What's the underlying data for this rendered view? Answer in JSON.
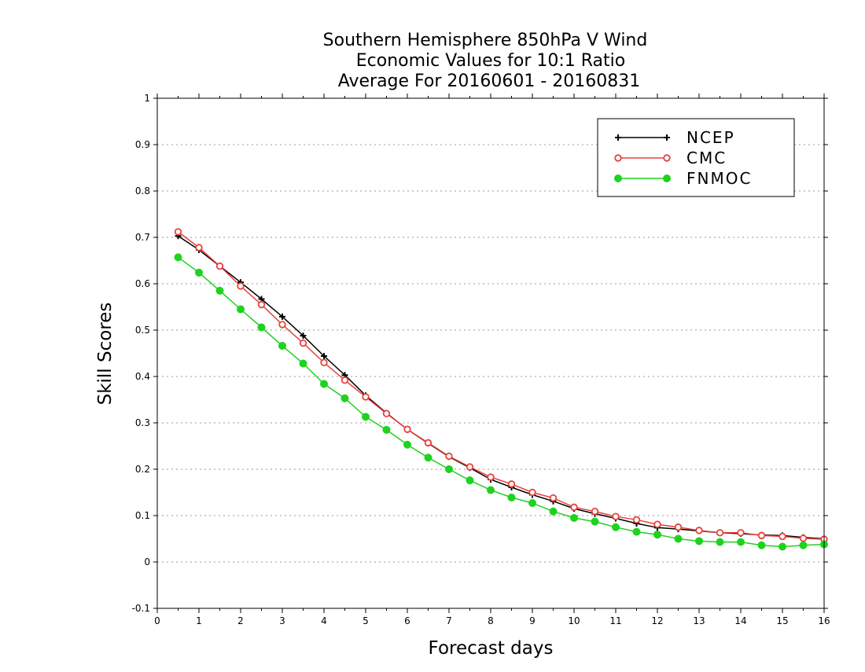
{
  "title_lines": [
    "Southern Hemisphere 850hPa V Wind",
    "Economic Values for 10:1 Ratio",
    "Average For 20160601 - 20160831"
  ],
  "colors": {
    "NCEP": "#000000",
    "CMC": "#e8413c",
    "FNMOC": "#1fd21f",
    "grid": "#9a9a9a"
  },
  "chart_data": {
    "type": "line",
    "xlabel": "Forecast days",
    "ylabel": "Skill Scores",
    "xlim": [
      0,
      16
    ],
    "ylim": [
      -0.1,
      1
    ],
    "xticks": [
      "0",
      "1",
      "2",
      "3",
      "4",
      "5",
      "6",
      "7",
      "8",
      "9",
      "10",
      "11",
      "12",
      "13",
      "14",
      "15",
      "16"
    ],
    "yticks": [
      "-0.1",
      "0",
      "0.1",
      "0.2",
      "0.3",
      "0.4",
      "0.5",
      "0.6",
      "0.7",
      "0.8",
      "0.9",
      "1"
    ],
    "grid": true,
    "legend_position": "top-right",
    "x": [
      0.5,
      1,
      1.5,
      2,
      2.5,
      3,
      3.5,
      4,
      4.5,
      5,
      5.5,
      6,
      6.5,
      7,
      7.5,
      8,
      8.5,
      9,
      9.5,
      10,
      10.5,
      11,
      11.5,
      12,
      12.5,
      13,
      13.5,
      14,
      14.5,
      15,
      15.5,
      16
    ],
    "series": [
      {
        "name": "NCEP",
        "marker": "plus",
        "values": [
          0.703,
          0.673,
          0.638,
          0.603,
          0.567,
          0.529,
          0.488,
          0.444,
          0.403,
          0.359,
          0.321,
          0.286,
          0.256,
          0.227,
          0.203,
          0.178,
          0.161,
          0.145,
          0.131,
          0.115,
          0.104,
          0.094,
          0.083,
          0.074,
          0.071,
          0.067,
          0.063,
          0.061,
          0.058,
          0.057,
          0.053,
          0.05
        ]
      },
      {
        "name": "CMC",
        "marker": "open-circle",
        "values": [
          0.712,
          0.678,
          0.638,
          0.595,
          0.555,
          0.512,
          0.472,
          0.43,
          0.392,
          0.356,
          0.32,
          0.286,
          0.257,
          0.228,
          0.205,
          0.183,
          0.168,
          0.15,
          0.138,
          0.118,
          0.109,
          0.098,
          0.091,
          0.081,
          0.075,
          0.068,
          0.063,
          0.063,
          0.057,
          0.055,
          0.051,
          0.049
        ]
      },
      {
        "name": "FNMOC",
        "marker": "filled-circle",
        "values": [
          0.657,
          0.624,
          0.585,
          0.545,
          0.506,
          0.466,
          0.428,
          0.384,
          0.353,
          0.313,
          0.285,
          0.253,
          0.225,
          0.2,
          0.176,
          0.155,
          0.139,
          0.127,
          0.109,
          0.095,
          0.087,
          0.075,
          0.065,
          0.059,
          0.05,
          0.045,
          0.043,
          0.043,
          0.036,
          0.033,
          0.036,
          0.038
        ]
      }
    ]
  }
}
